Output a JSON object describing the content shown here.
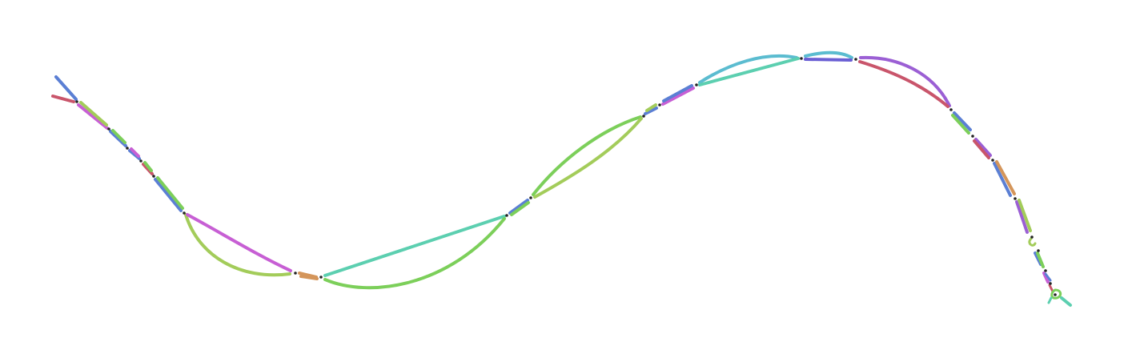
{
  "graph": {
    "type": "assembly-graph",
    "palette": {
      "blue": "#5b7fd4",
      "red": "#c9556b",
      "green": "#7ccf5a",
      "lime": "#a3cc5a",
      "magenta": "#c75fd4",
      "teal": "#5ccfb0",
      "cyan": "#5bbcd0",
      "orange": "#d4955a",
      "indigo": "#6a5fd4",
      "purple": "#9b5fd4"
    }
  }
}
